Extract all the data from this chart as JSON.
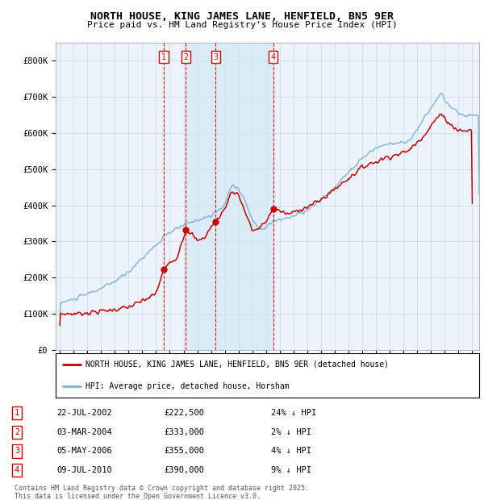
{
  "title": "NORTH HOUSE, KING JAMES LANE, HENFIELD, BN5 9ER",
  "subtitle": "Price paid vs. HM Land Registry's House Price Index (HPI)",
  "legend_line1": "NORTH HOUSE, KING JAMES LANE, HENFIELD, BN5 9ER (detached house)",
  "legend_line2": "HPI: Average price, detached house, Horsham",
  "footnote1": "Contains HM Land Registry data © Crown copyright and database right 2025.",
  "footnote2": "This data is licensed under the Open Government Licence v3.0.",
  "transactions": [
    {
      "num": 1,
      "date": "22-JUL-2002",
      "price": "£222,500",
      "pct": "24% ↓ HPI",
      "year": 2002.55,
      "price_val": 222500
    },
    {
      "num": 2,
      "date": "03-MAR-2004",
      "price": "£333,000",
      "pct": " 2% ↓ HPI",
      "year": 2004.17,
      "price_val": 333000
    },
    {
      "num": 3,
      "date": "05-MAY-2006",
      "price": "£355,000",
      "pct": " 4% ↓ HPI",
      "year": 2006.34,
      "price_val": 355000
    },
    {
      "num": 4,
      "date": "09-JUL-2010",
      "price": "£390,000",
      "pct": " 9% ↓ HPI",
      "year": 2010.52,
      "price_val": 390000
    }
  ],
  "hpi_color": "#7ab3d4",
  "sale_color": "#cc0000",
  "vline_color": "#dd0000",
  "shade_color": "#d0e8f5",
  "background_chart": "#edf3fb",
  "ylim": [
    0,
    850000
  ],
  "xlim_start": 1994.7,
  "xlim_end": 2025.5,
  "shade_x1": 2004.17,
  "shade_x2": 2010.52
}
